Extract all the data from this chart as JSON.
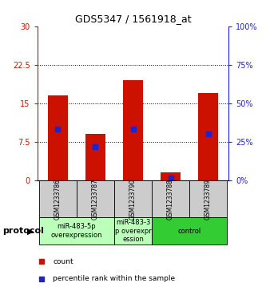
{
  "title": "GDS5347 / 1561918_at",
  "samples": [
    "GSM1233786",
    "GSM1233787",
    "GSM1233790",
    "GSM1233788",
    "GSM1233789"
  ],
  "bar_heights": [
    16.5,
    9.0,
    19.5,
    1.5,
    17.0
  ],
  "percentile_values": [
    10.0,
    6.5,
    10.0,
    0.5,
    9.0
  ],
  "ylim_left": [
    0,
    30
  ],
  "yticks_left": [
    0,
    7.5,
    15,
    22.5,
    30
  ],
  "yticks_right": [
    0,
    25,
    50,
    75,
    100
  ],
  "ytick_labels_left": [
    "0",
    "7.5",
    "15",
    "22.5",
    "30"
  ],
  "ytick_labels_right": [
    "0%",
    "25%",
    "50%",
    "75%",
    "100%"
  ],
  "grid_values": [
    7.5,
    15,
    22.5
  ],
  "bar_color": "#cc1100",
  "percentile_color": "#2222cc",
  "protocol_groups": [
    {
      "label": "miR-483-5p\noverexpression",
      "indices": [
        0,
        1
      ],
      "color": "#bbffbb"
    },
    {
      "label": "miR-483-3\np overexpr\nession",
      "indices": [
        2
      ],
      "color": "#bbffbb"
    },
    {
      "label": "control",
      "indices": [
        3,
        4
      ],
      "color": "#33cc33"
    }
  ],
  "protocol_label": "protocol",
  "legend_count_label": "count",
  "legend_percentile_label": "percentile rank within the sample",
  "bar_width": 0.55,
  "sample_box_color": "#cccccc",
  "left_axis_color": "#cc1100",
  "right_axis_color": "#2222cc",
  "bg_color": "#ffffff",
  "title_fontsize": 9,
  "tick_fontsize": 7,
  "sample_fontsize": 5.5,
  "protocol_fontsize": 6,
  "legend_fontsize": 6.5
}
